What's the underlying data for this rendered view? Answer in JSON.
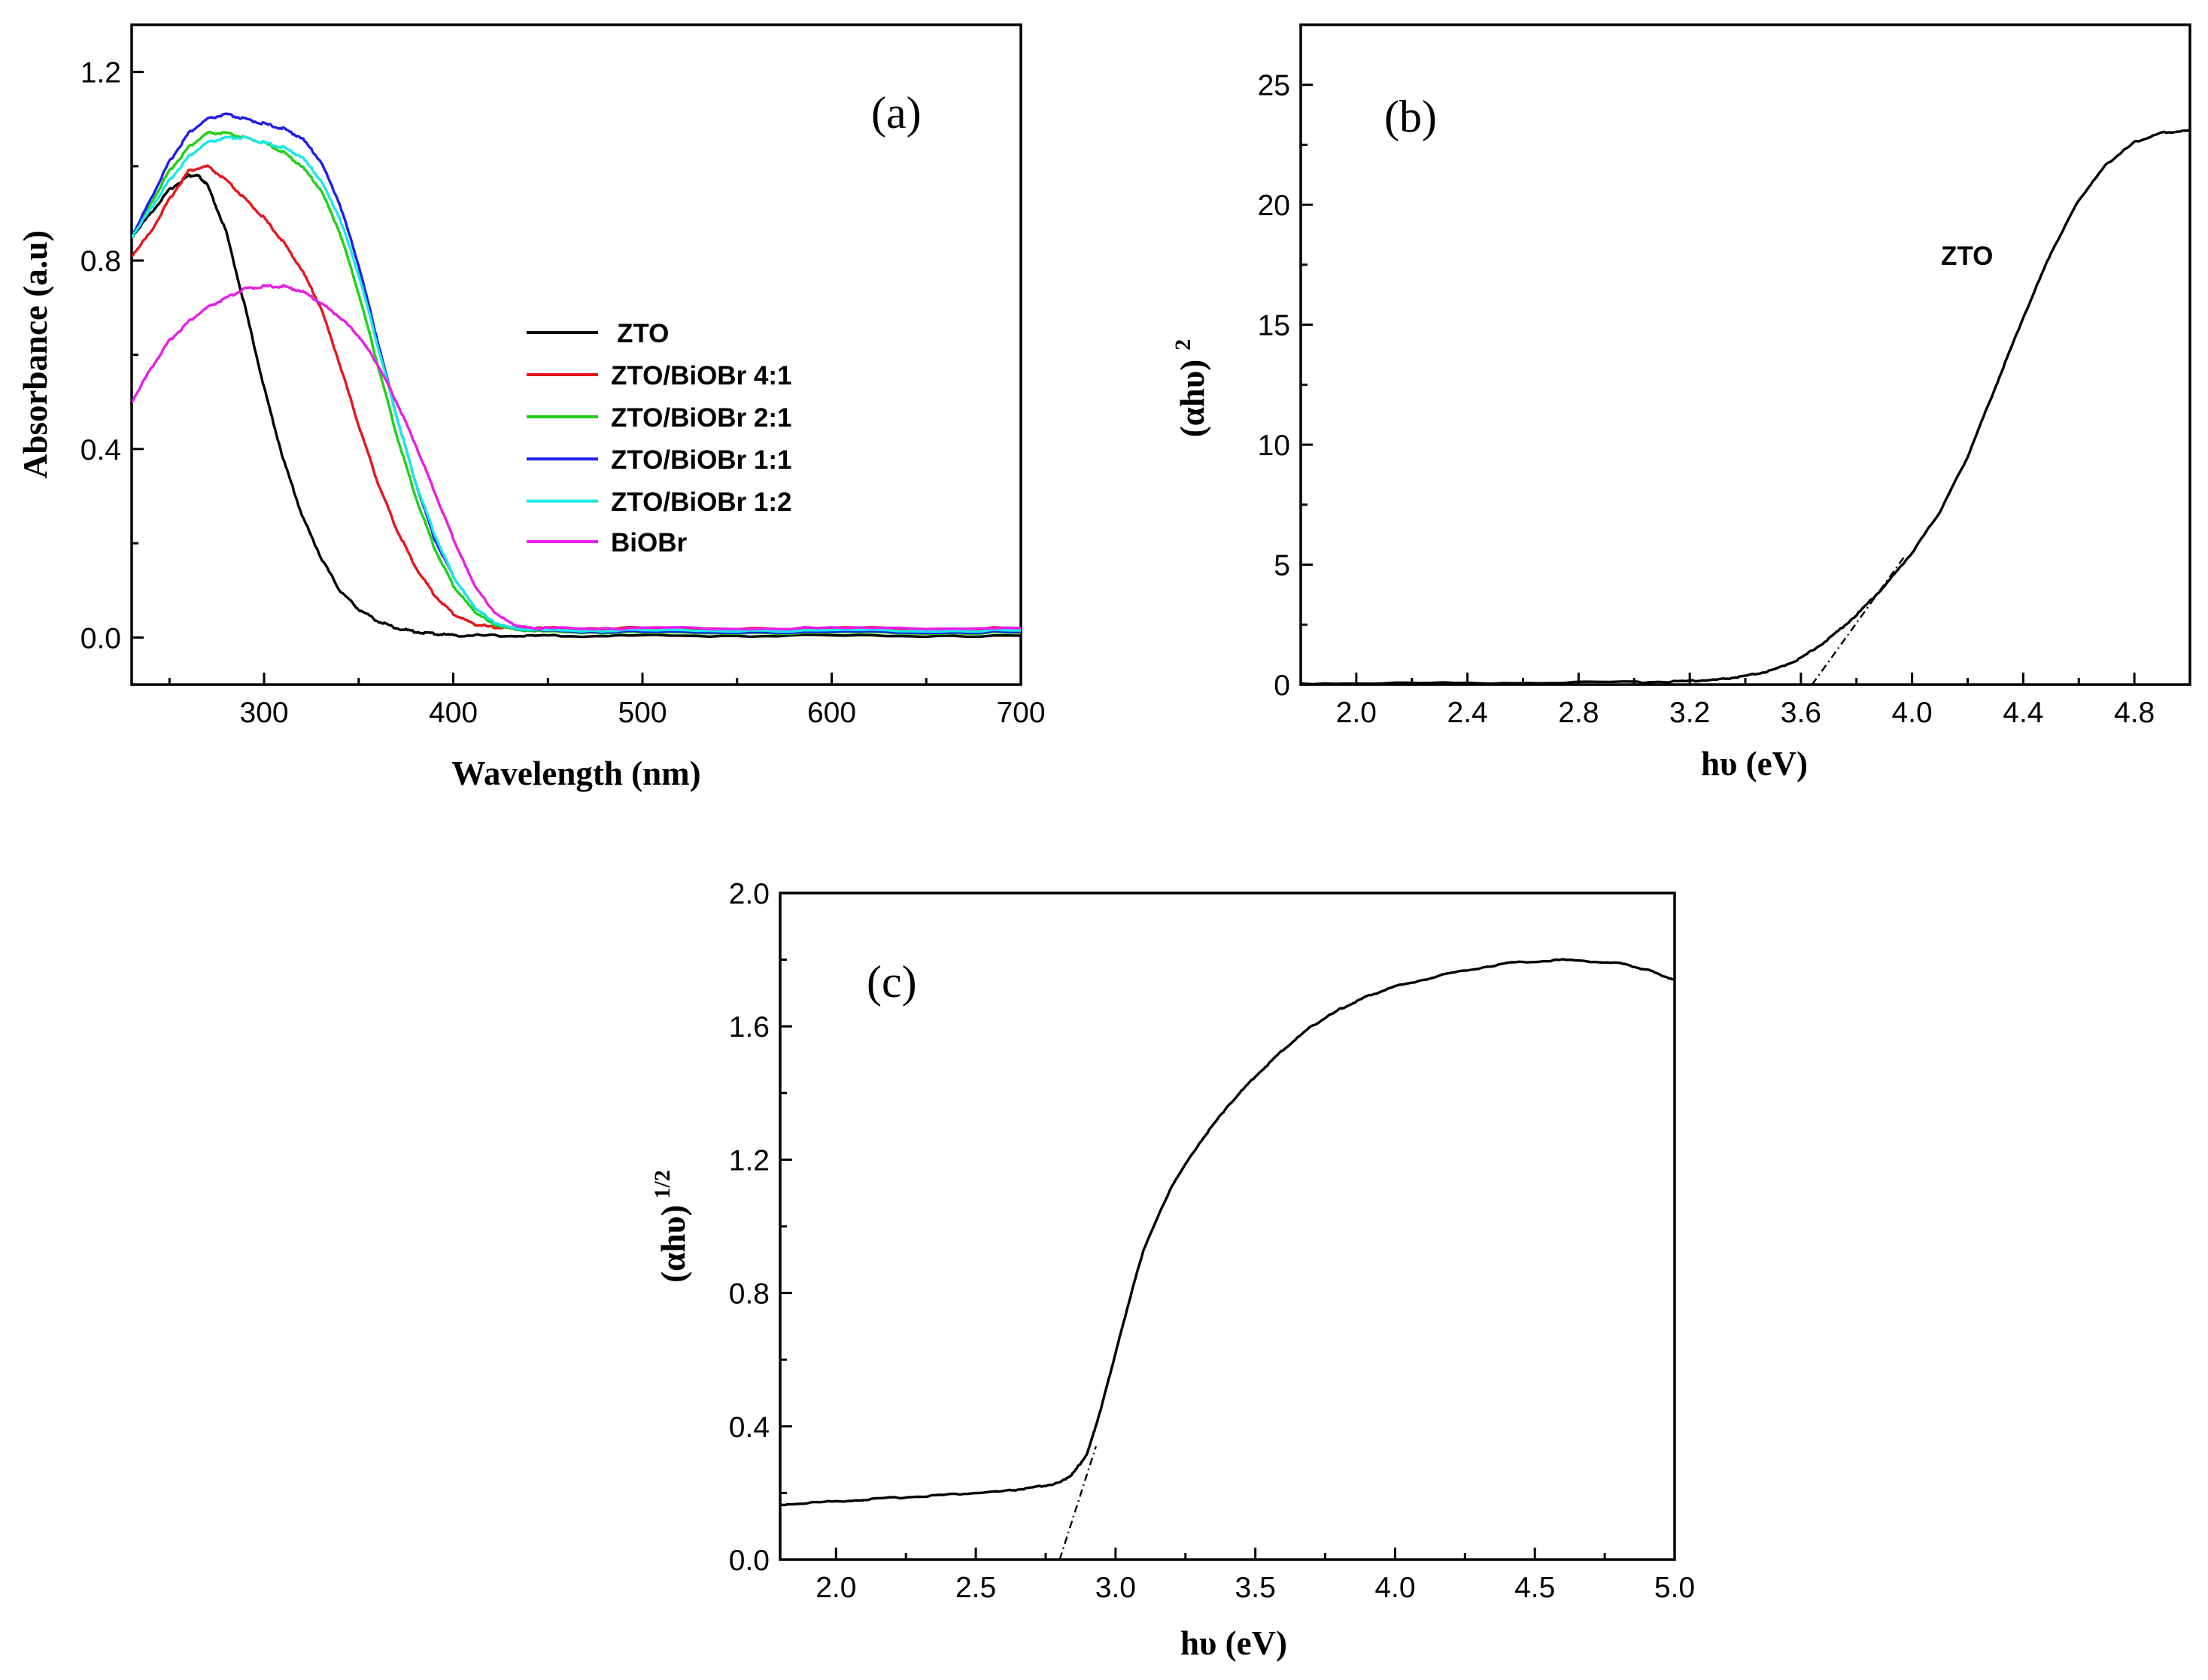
{
  "chart_data": [
    {
      "id": "a",
      "type": "line",
      "panel_label": "(a)",
      "xlabel": "Wavelength (nm)",
      "ylabel": "Absorbance (a.u)",
      "xlim": [
        230,
        700
      ],
      "ylim": [
        -0.1,
        1.3
      ],
      "xticks": [
        300,
        400,
        500,
        600,
        700
      ],
      "xtick_labels": [
        "300",
        "400",
        "500",
        "600",
        "700"
      ],
      "yticks": [
        0.0,
        0.4,
        0.8,
        1.2
      ],
      "ytick_labels": [
        "0.0",
        "0.4",
        "0.8",
        "1.2"
      ],
      "legend_position": "center-right",
      "series": [
        {
          "name": "ZTO",
          "color": "#000000",
          "x": [
            230,
            240,
            250,
            260,
            265,
            270,
            280,
            290,
            300,
            310,
            320,
            330,
            340,
            350,
            360,
            370,
            380,
            390,
            400,
            420,
            450,
            500,
            600,
            700
          ],
          "y": [
            0.85,
            0.9,
            0.95,
            0.98,
            0.98,
            0.96,
            0.86,
            0.7,
            0.53,
            0.38,
            0.26,
            0.17,
            0.1,
            0.06,
            0.035,
            0.02,
            0.012,
            0.008,
            0.005,
            0.004,
            0.003,
            0.004,
            0.004,
            0.004
          ]
        },
        {
          "name": "ZTO/BiOBr 4:1",
          "color": "#e8151b",
          "x": [
            230,
            240,
            250,
            260,
            270,
            280,
            290,
            300,
            310,
            320,
            330,
            340,
            350,
            360,
            370,
            380,
            390,
            400,
            410,
            420,
            430,
            450,
            500,
            600,
            700
          ],
          "y": [
            0.81,
            0.86,
            0.93,
            0.99,
            1.0,
            0.97,
            0.93,
            0.89,
            0.84,
            0.78,
            0.7,
            0.58,
            0.45,
            0.33,
            0.23,
            0.15,
            0.09,
            0.05,
            0.03,
            0.022,
            0.02,
            0.02,
            0.02,
            0.02,
            0.02
          ]
        },
        {
          "name": "ZTO/BiOBr 2:1",
          "color": "#22d015",
          "x": [
            230,
            240,
            250,
            260,
            270,
            280,
            290,
            300,
            310,
            320,
            330,
            340,
            350,
            360,
            370,
            380,
            390,
            400,
            410,
            420,
            430,
            450,
            500,
            600,
            700
          ],
          "y": [
            0.85,
            0.92,
            0.99,
            1.04,
            1.07,
            1.07,
            1.06,
            1.05,
            1.03,
            1.0,
            0.95,
            0.86,
            0.73,
            0.58,
            0.43,
            0.3,
            0.19,
            0.11,
            0.06,
            0.03,
            0.018,
            0.012,
            0.01,
            0.01,
            0.01
          ]
        },
        {
          "name": "ZTO/BiOBr 1:1",
          "color": "#1f1fe8",
          "x": [
            230,
            240,
            250,
            260,
            270,
            280,
            290,
            300,
            310,
            320,
            330,
            340,
            350,
            360,
            370,
            380,
            390,
            400,
            410,
            420,
            430,
            450,
            500,
            600,
            700
          ],
          "y": [
            0.85,
            0.93,
            1.01,
            1.07,
            1.1,
            1.11,
            1.1,
            1.09,
            1.08,
            1.06,
            1.01,
            0.92,
            0.79,
            0.63,
            0.47,
            0.33,
            0.21,
            0.13,
            0.07,
            0.035,
            0.02,
            0.014,
            0.012,
            0.012,
            0.012
          ]
        },
        {
          "name": "ZTO/BiOBr 1:2",
          "color": "#19e8e8",
          "x": [
            230,
            240,
            250,
            260,
            270,
            280,
            290,
            300,
            310,
            320,
            330,
            340,
            350,
            360,
            370,
            380,
            390,
            400,
            410,
            420,
            430,
            450,
            500,
            600,
            700
          ],
          "y": [
            0.85,
            0.91,
            0.97,
            1.02,
            1.05,
            1.06,
            1.06,
            1.05,
            1.04,
            1.02,
            0.97,
            0.89,
            0.77,
            0.62,
            0.47,
            0.33,
            0.22,
            0.13,
            0.07,
            0.035,
            0.02,
            0.015,
            0.015,
            0.015,
            0.015
          ]
        },
        {
          "name": "BiOBr",
          "color": "#e81ee8",
          "x": [
            230,
            240,
            250,
            260,
            270,
            280,
            290,
            300,
            310,
            320,
            330,
            340,
            350,
            360,
            370,
            380,
            390,
            400,
            410,
            420,
            430,
            440,
            450,
            500,
            600,
            700
          ],
          "y": [
            0.5,
            0.57,
            0.63,
            0.67,
            0.7,
            0.72,
            0.74,
            0.745,
            0.745,
            0.735,
            0.71,
            0.68,
            0.64,
            0.58,
            0.5,
            0.41,
            0.31,
            0.21,
            0.12,
            0.06,
            0.03,
            0.02,
            0.02,
            0.02,
            0.02,
            0.02
          ]
        }
      ]
    },
    {
      "id": "b",
      "type": "line",
      "panel_label": "(b)",
      "xlabel": "hυ (eV)",
      "ylabel": "(αhυ)²",
      "ylabel_base": "(αhυ)",
      "ylabel_sup": "2",
      "xlim": [
        1.8,
        5.0
      ],
      "ylim": [
        0,
        27.5
      ],
      "xticks": [
        2.0,
        2.4,
        2.8,
        3.2,
        3.6,
        4.0,
        4.4,
        4.8
      ],
      "xtick_labels": [
        "2.0",
        "2.4",
        "2.8",
        "3.2",
        "3.6",
        "4.0",
        "4.4",
        "4.8"
      ],
      "yticks": [
        0,
        5,
        10,
        15,
        20,
        25
      ],
      "ytick_labels": [
        "0",
        "5",
        "10",
        "15",
        "20",
        "25"
      ],
      "annotation": "ZTO",
      "series": [
        {
          "name": "ZTO",
          "color": "#000000",
          "x": [
            1.8,
            2.4,
            3.0,
            3.2,
            3.3,
            3.4,
            3.5,
            3.6,
            3.7,
            3.8,
            3.9,
            4.0,
            4.1,
            4.2,
            4.3,
            4.4,
            4.5,
            4.6,
            4.7,
            4.8,
            4.9,
            5.0
          ],
          "y": [
            0.05,
            0.07,
            0.1,
            0.15,
            0.2,
            0.35,
            0.6,
            1.1,
            1.9,
            2.9,
            4.1,
            5.5,
            7.2,
            9.5,
            12.4,
            15.3,
            18.0,
            20.2,
            21.7,
            22.6,
            23.0,
            23.1
          ]
        }
      ],
      "tangent": {
        "x": [
          3.64,
          3.97
        ],
        "y": [
          0.0,
          5.3
        ]
      }
    },
    {
      "id": "c",
      "type": "line",
      "panel_label": "(c)",
      "xlabel": "hυ (eV)",
      "ylabel": "(αhυ)^1/2",
      "ylabel_base": "(αhυ)",
      "ylabel_sup": "1/2",
      "xlim": [
        1.8,
        5.0
      ],
      "ylim": [
        0.0,
        2.0
      ],
      "xticks": [
        2.0,
        2.5,
        3.0,
        3.5,
        4.0,
        4.5,
        5.0
      ],
      "xtick_labels": [
        "2.0",
        "2.5",
        "3.0",
        "3.5",
        "4.0",
        "4.5",
        "5.0"
      ],
      "yticks": [
        0.0,
        0.4,
        0.8,
        1.2,
        1.6,
        2.0
      ],
      "ytick_labels": [
        "0.0",
        "0.4",
        "0.8",
        "1.2",
        "1.6",
        "2.0"
      ],
      "series": [
        {
          "name": "ZTO",
          "color": "#000000",
          "x": [
            1.8,
            2.0,
            2.2,
            2.4,
            2.6,
            2.7,
            2.8,
            2.85,
            2.9,
            2.95,
            3.0,
            3.05,
            3.1,
            3.2,
            3.3,
            3.4,
            3.5,
            3.6,
            3.7,
            3.8,
            3.9,
            4.0,
            4.2,
            4.4,
            4.6,
            4.8,
            4.9,
            5.0
          ],
          "y": [
            0.165,
            0.175,
            0.185,
            0.195,
            0.205,
            0.215,
            0.23,
            0.26,
            0.32,
            0.46,
            0.62,
            0.78,
            0.93,
            1.12,
            1.25,
            1.36,
            1.45,
            1.53,
            1.6,
            1.65,
            1.69,
            1.72,
            1.76,
            1.79,
            1.8,
            1.79,
            1.77,
            1.74
          ]
        }
      ],
      "tangent": {
        "x": [
          2.8,
          2.93
        ],
        "y": [
          0.0,
          0.34
        ]
      }
    }
  ]
}
